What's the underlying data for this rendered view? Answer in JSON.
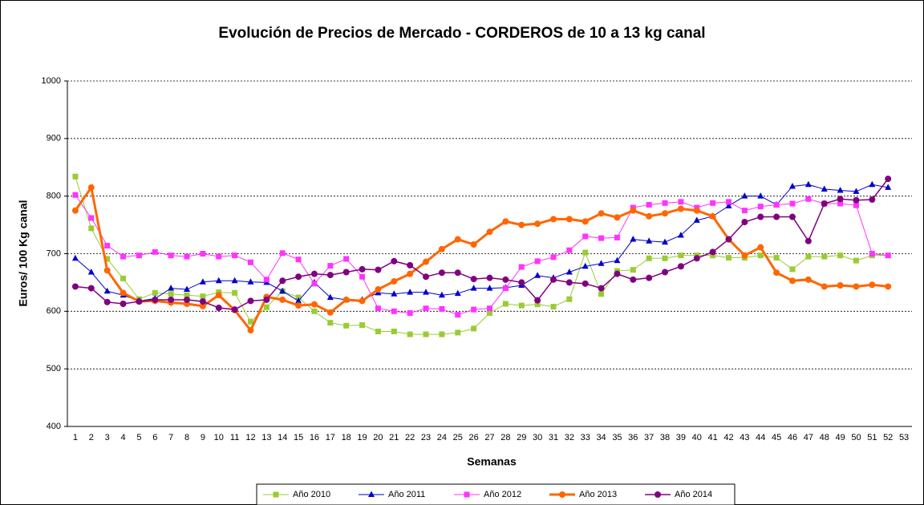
{
  "chart_data": {
    "type": "line",
    "title": "Evolución de Precios de Mercado - CORDEROS de 10 a 13 kg canal",
    "x_label": "Semanas",
    "y_label": "Euros/ 100 Kg canal",
    "categories": [
      1,
      2,
      3,
      4,
      5,
      6,
      7,
      8,
      9,
      10,
      11,
      12,
      13,
      14,
      15,
      16,
      17,
      18,
      19,
      20,
      21,
      22,
      23,
      24,
      25,
      26,
      27,
      28,
      29,
      30,
      31,
      32,
      33,
      34,
      35,
      36,
      37,
      38,
      39,
      40,
      41,
      42,
      43,
      44,
      45,
      46,
      47,
      48,
      49,
      50,
      51,
      52,
      53
    ],
    "ylim": [
      400,
      1000
    ],
    "yticks": [
      400,
      500,
      600,
      700,
      800,
      900,
      1000
    ],
    "grid": true,
    "legend": "bottom",
    "series": [
      {
        "name": "Año 2010",
        "color": "#99cc33",
        "marker": "square",
        "line_width": 1,
        "values": [
          834,
          744,
          691,
          657,
          621,
          632,
          630,
          628,
          626,
          633,
          632,
          582,
          607,
          635,
          624,
          600,
          580,
          575,
          576,
          565,
          565,
          560,
          560,
          560,
          563,
          570,
          597,
          613,
          610,
          612,
          608,
          621,
          702,
          630,
          670,
          672,
          692,
          692,
          697,
          697,
          697,
          693,
          693,
          697,
          693,
          673,
          695,
          695,
          697,
          688,
          697,
          697,
          null
        ]
      },
      {
        "name": "Año 2011",
        "color": "#0000cc",
        "marker": "triangle",
        "line_width": 1,
        "values": [
          692,
          668,
          635,
          628,
          618,
          622,
          640,
          638,
          651,
          653,
          653,
          651,
          650,
          635,
          618,
          650,
          624,
          620,
          620,
          632,
          630,
          633,
          633,
          628,
          631,
          640,
          640,
          641,
          645,
          662,
          658,
          668,
          678,
          683,
          688,
          725,
          722,
          720,
          732,
          758,
          765,
          783,
          800,
          800,
          785,
          817,
          820,
          812,
          810,
          808,
          820,
          815,
          null
        ]
      },
      {
        "name": "Año 2012",
        "color": "#ff33ff",
        "marker": "square",
        "line_width": 1,
        "values": [
          802,
          762,
          714,
          695,
          697,
          703,
          697,
          695,
          700,
          695,
          697,
          685,
          655,
          701,
          690,
          648,
          679,
          691,
          660,
          605,
          600,
          597,
          605,
          604,
          594,
          603,
          605,
          640,
          677,
          687,
          694,
          706,
          730,
          727,
          728,
          780,
          785,
          788,
          790,
          780,
          788,
          790,
          775,
          782,
          785,
          787,
          795,
          787,
          787,
          784,
          700,
          697,
          null
        ]
      },
      {
        "name": "Año 2013",
        "color": "#ff6600",
        "marker": "circle",
        "line_width": 3,
        "values": [
          775,
          815,
          671,
          632,
          617,
          618,
          615,
          613,
          609,
          628,
          602,
          567,
          625,
          620,
          610,
          612,
          598,
          620,
          618,
          638,
          652,
          665,
          686,
          708,
          725,
          716,
          738,
          756,
          750,
          752,
          760,
          760,
          756,
          770,
          763,
          775,
          765,
          770,
          778,
          775,
          765,
          725,
          697,
          711,
          667,
          653,
          655,
          643,
          645,
          643,
          646,
          643,
          null
        ]
      },
      {
        "name": "Año 2014",
        "color": "#800080",
        "marker": "circle",
        "line_width": 1.5,
        "values": [
          643,
          640,
          616,
          613,
          617,
          620,
          620,
          620,
          617,
          606,
          603,
          618,
          620,
          653,
          660,
          665,
          663,
          668,
          673,
          672,
          687,
          680,
          660,
          667,
          667,
          656,
          658,
          655,
          650,
          619,
          655,
          650,
          648,
          640,
          665,
          655,
          658,
          668,
          678,
          692,
          703,
          725,
          755,
          764,
          764,
          764,
          722,
          787,
          795,
          793,
          794,
          830,
          null
        ]
      }
    ]
  }
}
